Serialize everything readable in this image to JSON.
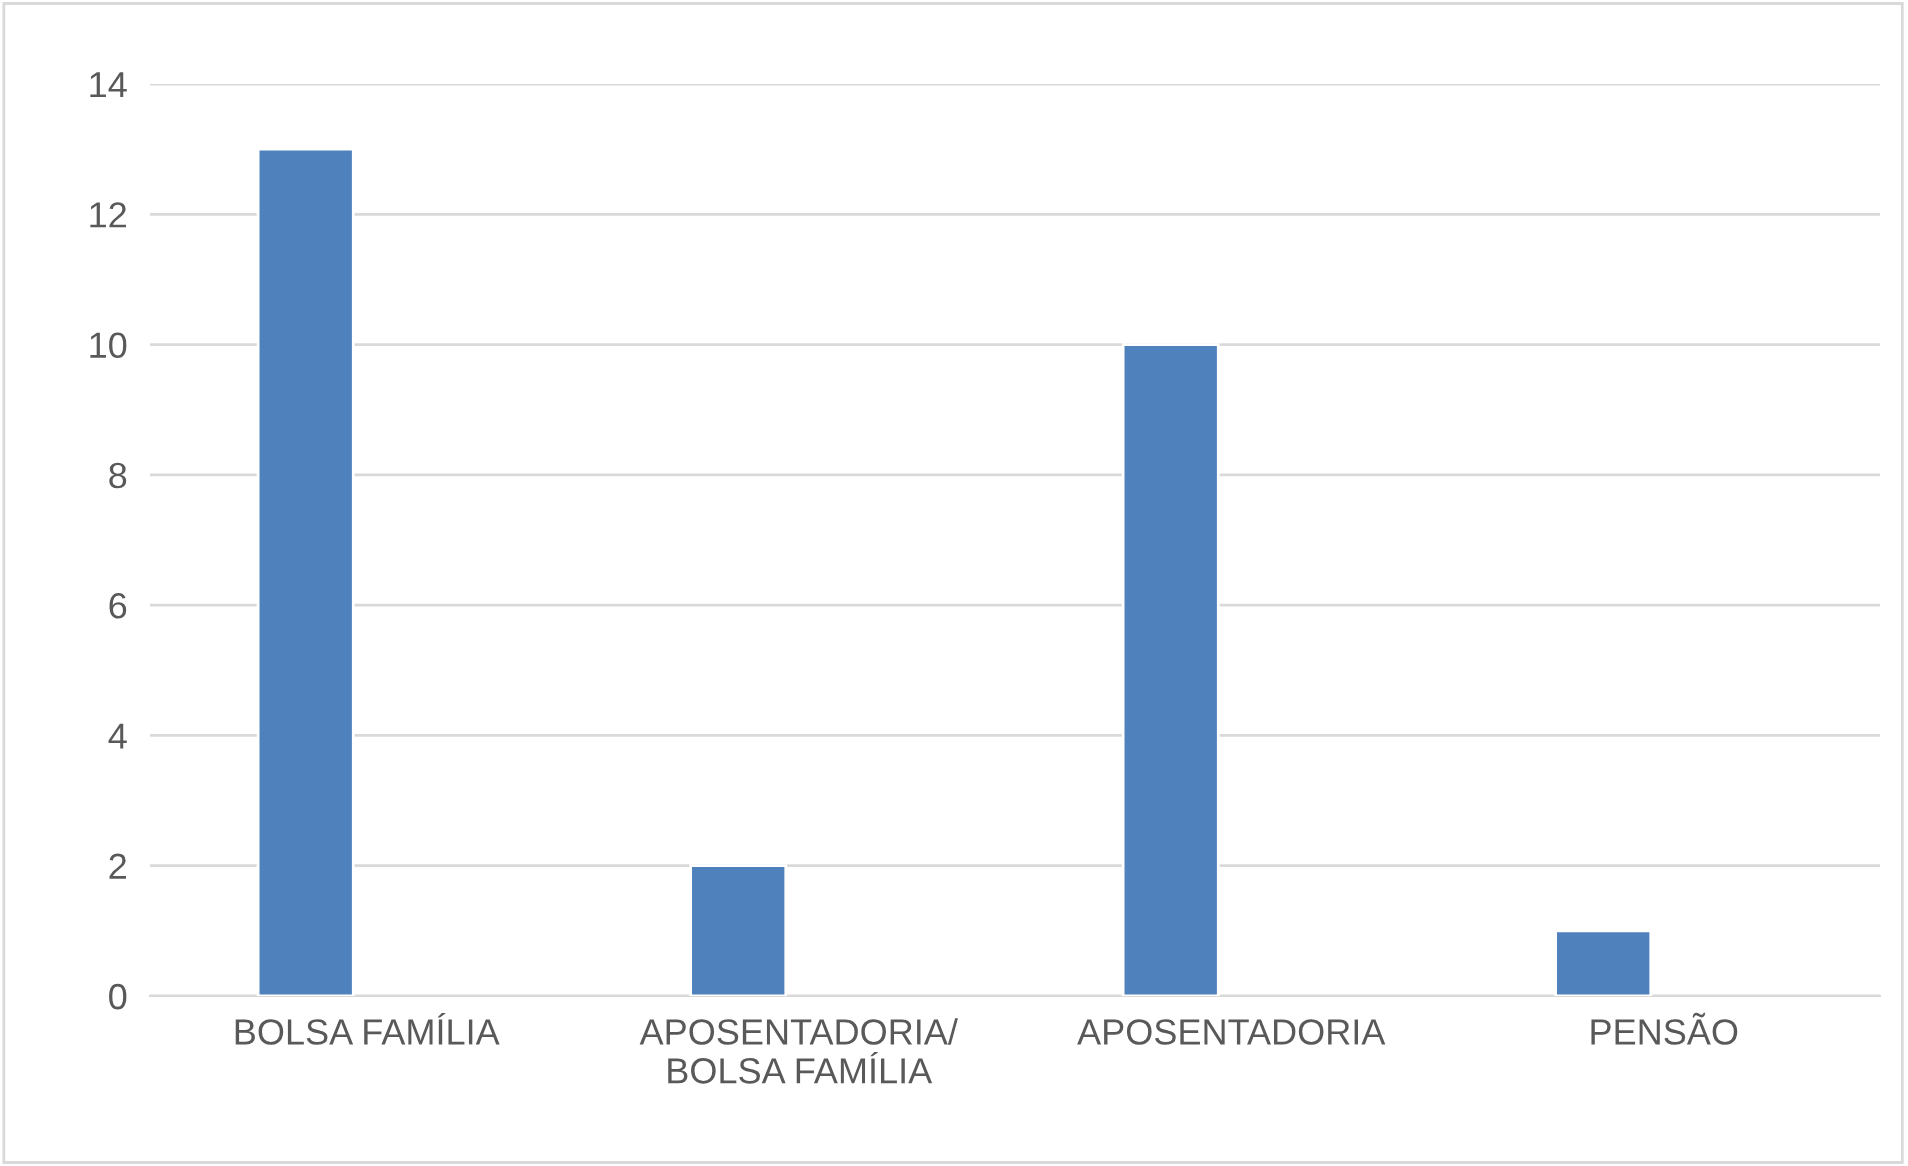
{
  "chart_data": {
    "type": "bar",
    "categories": [
      "BOLSA FAMÍLIA",
      "APOSENTADORIA/\nBOLSA FAMÍLIA",
      "APOSENTADORIA",
      "PENSÃO"
    ],
    "values": [
      13,
      2,
      10,
      1
    ],
    "color": "#4f81bd",
    "ylim": [
      0,
      14
    ],
    "yticks": [
      0,
      2,
      4,
      6,
      8,
      10,
      12,
      14
    ],
    "grid": "y"
  }
}
